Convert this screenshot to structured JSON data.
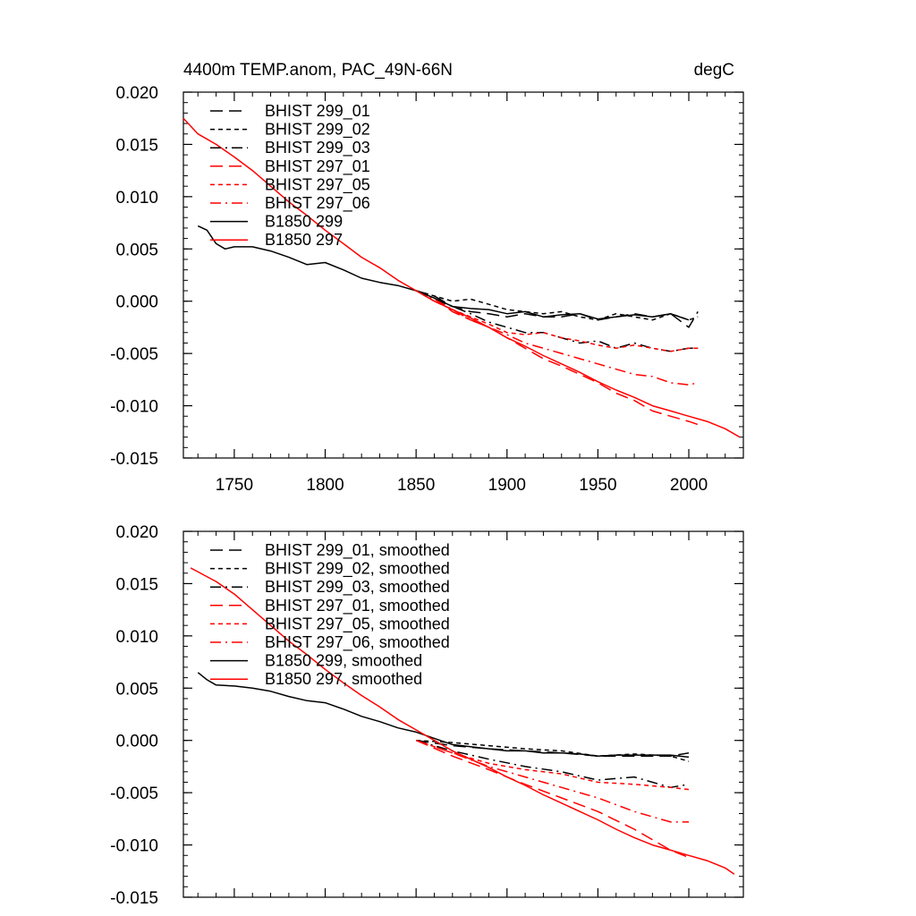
{
  "chart_data": [
    {
      "type": "line",
      "title": "4400m TEMP.anom, PAC_49N-66N",
      "units": "degC",
      "xlim": [
        1722,
        2030
      ],
      "ylim": [
        -0.015,
        0.02
      ],
      "xticks": [
        1750,
        1800,
        1850,
        1900,
        1950,
        2000
      ],
      "xtick_labels_shown": true,
      "yticks": [
        0.02,
        0.015,
        0.01,
        0.005,
        0.0,
        -0.005,
        -0.01,
        -0.015
      ],
      "ytick_labels": [
        "0.020",
        "0.015",
        "0.010",
        "0.005",
        "0.000",
        "-0.005",
        "-0.010",
        "-0.015"
      ],
      "grid": false,
      "legend_position": "top-left",
      "series": [
        {
          "name": "BHIST 299_01",
          "color": "#000000",
          "dash": "long-dash",
          "x": [
            1850,
            1860,
            1870,
            1880,
            1890,
            1900,
            1910,
            1920,
            1930,
            1940,
            1950,
            1960,
            1970,
            1980,
            1990,
            2000,
            2005
          ],
          "y": [
            0.001,
            0.0005,
            -0.0005,
            -0.001,
            -0.0012,
            -0.0015,
            -0.0012,
            -0.0015,
            -0.0015,
            -0.0012,
            -0.0018,
            -0.0015,
            -0.0012,
            -0.0015,
            -0.0012,
            -0.0025,
            -0.001
          ]
        },
        {
          "name": "BHIST 299_02",
          "color": "#000000",
          "dash": "short-dash",
          "x": [
            1850,
            1860,
            1870,
            1880,
            1890,
            1900,
            1910,
            1920,
            1930,
            1940,
            1950,
            1960,
            1970,
            1980,
            1990,
            2000,
            2005
          ],
          "y": [
            0.001,
            0.0005,
            0.0,
            0.0002,
            -0.0003,
            -0.0008,
            -0.001,
            -0.0012,
            -0.001,
            -0.0015,
            -0.0018,
            -0.0012,
            -0.0015,
            -0.0018,
            -0.0012,
            -0.0018,
            -0.0015
          ]
        },
        {
          "name": "BHIST 299_03",
          "color": "#000000",
          "dash": "dash-dot",
          "x": [
            1850,
            1860,
            1870,
            1880,
            1890,
            1900,
            1910,
            1920,
            1930,
            1940,
            1950,
            1960,
            1970,
            1980,
            1990,
            2000,
            2005
          ],
          "y": [
            0.001,
            0.0002,
            -0.0005,
            -0.0012,
            -0.002,
            -0.0025,
            -0.003,
            -0.003,
            -0.0035,
            -0.004,
            -0.0038,
            -0.0045,
            -0.004,
            -0.0045,
            -0.0048,
            -0.0045,
            -0.0045
          ]
        },
        {
          "name": "BHIST 297_01",
          "color": "#ff0000",
          "dash": "long-dash",
          "x": [
            1850,
            1860,
            1870,
            1880,
            1890,
            1900,
            1910,
            1920,
            1930,
            1940,
            1950,
            1960,
            1970,
            1980,
            1990,
            2000,
            2005
          ],
          "y": [
            0.001,
            0.0003,
            -0.001,
            -0.0018,
            -0.0025,
            -0.0035,
            -0.0045,
            -0.0055,
            -0.0062,
            -0.007,
            -0.0078,
            -0.0088,
            -0.0095,
            -0.0105,
            -0.011,
            -0.0115,
            -0.0118
          ]
        },
        {
          "name": "BHIST 297_05",
          "color": "#ff0000",
          "dash": "short-dash",
          "x": [
            1850,
            1860,
            1870,
            1880,
            1890,
            1900,
            1910,
            1920,
            1930,
            1940,
            1950,
            1960,
            1970,
            1980,
            1990,
            2000,
            2005
          ],
          "y": [
            0.001,
            0.0,
            -0.0008,
            -0.0015,
            -0.0022,
            -0.003,
            -0.0032,
            -0.003,
            -0.0035,
            -0.0038,
            -0.0042,
            -0.0045,
            -0.0042,
            -0.0045,
            -0.0048,
            -0.0045,
            -0.0045
          ]
        },
        {
          "name": "BHIST 297_06",
          "color": "#ff0000",
          "dash": "dash-dot",
          "x": [
            1850,
            1860,
            1870,
            1880,
            1890,
            1900,
            1910,
            1920,
            1930,
            1940,
            1950,
            1960,
            1970,
            1980,
            1990,
            2000,
            2005
          ],
          "y": [
            0.001,
            0.0002,
            -0.0008,
            -0.0018,
            -0.0025,
            -0.0032,
            -0.004,
            -0.0045,
            -0.005,
            -0.0055,
            -0.006,
            -0.0065,
            -0.007,
            -0.0072,
            -0.0078,
            -0.008,
            -0.0078
          ]
        },
        {
          "name": "B1850 299",
          "color": "#000000",
          "dash": "solid",
          "x": [
            1730,
            1735,
            1740,
            1745,
            1750,
            1760,
            1770,
            1780,
            1790,
            1800,
            1810,
            1820,
            1830,
            1840,
            1850,
            1860,
            1870,
            1880,
            1890,
            1900,
            1910,
            1920,
            1930,
            1940,
            1950,
            1960,
            1970,
            1980,
            1990,
            2000
          ],
          "y": [
            0.0072,
            0.0068,
            0.0055,
            0.005,
            0.0052,
            0.0052,
            0.0048,
            0.0042,
            0.0035,
            0.0037,
            0.003,
            0.0022,
            0.0018,
            0.0015,
            0.001,
            0.0003,
            -0.0005,
            -0.0007,
            -0.0008,
            -0.0012,
            -0.001,
            -0.0015,
            -0.0013,
            -0.0012,
            -0.0017,
            -0.0015,
            -0.0013,
            -0.0015,
            -0.0012,
            -0.0018
          ]
        },
        {
          "name": "B1850 297",
          "color": "#ff0000",
          "dash": "solid",
          "x": [
            1722,
            1730,
            1740,
            1750,
            1760,
            1770,
            1780,
            1790,
            1800,
            1810,
            1820,
            1830,
            1840,
            1850,
            1860,
            1870,
            1880,
            1890,
            1900,
            1910,
            1920,
            1930,
            1940,
            1950,
            1960,
            1970,
            1980,
            1990,
            2000,
            2010,
            2020,
            2028
          ],
          "y": [
            0.0175,
            0.016,
            0.015,
            0.0138,
            0.0125,
            0.011,
            0.0095,
            0.0082,
            0.0068,
            0.0055,
            0.0042,
            0.0032,
            0.002,
            0.001,
            0.0,
            -0.0008,
            -0.0016,
            -0.0025,
            -0.0035,
            -0.0043,
            -0.0052,
            -0.006,
            -0.0068,
            -0.0077,
            -0.0085,
            -0.0092,
            -0.01,
            -0.0105,
            -0.011,
            -0.0115,
            -0.0122,
            -0.013
          ]
        }
      ]
    },
    {
      "type": "line",
      "xlim": [
        1722,
        2030
      ],
      "ylim": [
        -0.015,
        0.02
      ],
      "xticks": [
        1750,
        1800,
        1850,
        1900,
        1950,
        2000
      ],
      "xtick_labels_shown": false,
      "yticks": [
        0.02,
        0.015,
        0.01,
        0.005,
        0.0,
        -0.005,
        -0.01,
        -0.015
      ],
      "ytick_labels": [
        "0.020",
        "0.015",
        "0.010",
        "0.005",
        "0.000",
        "-0.005",
        "-0.010",
        "-0.015"
      ],
      "grid": false,
      "legend_position": "top-left",
      "series": [
        {
          "name": "BHIST 299_01, smoothed",
          "color": "#000000",
          "dash": "long-dash",
          "x": [
            1850,
            1870,
            1890,
            1910,
            1930,
            1950,
            1970,
            1990,
            2000
          ],
          "y": [
            0.0,
            -0.0005,
            -0.0008,
            -0.001,
            -0.0012,
            -0.0015,
            -0.0015,
            -0.0015,
            -0.0012
          ]
        },
        {
          "name": "BHIST 299_02, smoothed",
          "color": "#000000",
          "dash": "short-dash",
          "x": [
            1850,
            1870,
            1890,
            1910,
            1930,
            1950,
            1970,
            1990,
            2000
          ],
          "y": [
            0.0,
            -0.0002,
            -0.0005,
            -0.0008,
            -0.001,
            -0.0015,
            -0.0013,
            -0.0015,
            -0.002
          ]
        },
        {
          "name": "BHIST 299_03, smoothed",
          "color": "#000000",
          "dash": "dash-dot",
          "x": [
            1850,
            1870,
            1890,
            1910,
            1930,
            1950,
            1970,
            1990,
            2000
          ],
          "y": [
            0.0,
            -0.001,
            -0.0018,
            -0.0025,
            -0.003,
            -0.0038,
            -0.0035,
            -0.0045,
            -0.0042
          ]
        },
        {
          "name": "BHIST 297_01, smoothed",
          "color": "#ff0000",
          "dash": "long-dash",
          "x": [
            1850,
            1870,
            1890,
            1910,
            1930,
            1950,
            1970,
            1990,
            2000
          ],
          "y": [
            0.0,
            -0.0015,
            -0.0028,
            -0.0042,
            -0.0055,
            -0.0068,
            -0.0085,
            -0.0105,
            -0.0112
          ]
        },
        {
          "name": "BHIST 297_05, smoothed",
          "color": "#ff0000",
          "dash": "short-dash",
          "x": [
            1850,
            1870,
            1890,
            1910,
            1930,
            1950,
            1970,
            1990,
            2000
          ],
          "y": [
            0.0,
            -0.0012,
            -0.0022,
            -0.0028,
            -0.0032,
            -0.004,
            -0.0042,
            -0.0045,
            -0.0047
          ]
        },
        {
          "name": "BHIST 297_06, smoothed",
          "color": "#ff0000",
          "dash": "dash-dot",
          "x": [
            1850,
            1870,
            1890,
            1910,
            1930,
            1950,
            1970,
            1990,
            2000
          ],
          "y": [
            0.0,
            -0.0012,
            -0.0025,
            -0.0035,
            -0.0045,
            -0.0055,
            -0.0068,
            -0.0078,
            -0.0078
          ]
        },
        {
          "name": "B1850 299, smoothed",
          "color": "#000000",
          "dash": "solid",
          "x": [
            1730,
            1735,
            1740,
            1750,
            1760,
            1770,
            1780,
            1790,
            1800,
            1810,
            1820,
            1830,
            1840,
            1850,
            1860,
            1870,
            1880,
            1890,
            1900,
            1910,
            1920,
            1930,
            1940,
            1950,
            1960,
            1970,
            1980,
            1990,
            2000
          ],
          "y": [
            0.0065,
            0.0058,
            0.0053,
            0.0052,
            0.005,
            0.0047,
            0.0042,
            0.0038,
            0.0036,
            0.003,
            0.0023,
            0.0018,
            0.0012,
            0.0008,
            0.0002,
            -0.0004,
            -0.0006,
            -0.0008,
            -0.001,
            -0.001,
            -0.0012,
            -0.0012,
            -0.0013,
            -0.0015,
            -0.0014,
            -0.0014,
            -0.0014,
            -0.0014,
            -0.0016
          ]
        },
        {
          "name": "B1850 297, smoothed",
          "color": "#ff0000",
          "dash": "solid",
          "x": [
            1726,
            1740,
            1750,
            1760,
            1770,
            1780,
            1790,
            1800,
            1810,
            1820,
            1830,
            1840,
            1850,
            1860,
            1870,
            1880,
            1890,
            1900,
            1910,
            1920,
            1930,
            1940,
            1950,
            1960,
            1970,
            1980,
            1990,
            2000,
            2010,
            2020,
            2025
          ],
          "y": [
            0.0165,
            0.0152,
            0.014,
            0.0125,
            0.011,
            0.0095,
            0.0082,
            0.0068,
            0.0055,
            0.0043,
            0.0032,
            0.002,
            0.001,
            0.0,
            -0.001,
            -0.0018,
            -0.0026,
            -0.0035,
            -0.0043,
            -0.0052,
            -0.006,
            -0.0068,
            -0.0076,
            -0.0085,
            -0.0093,
            -0.01,
            -0.0105,
            -0.011,
            -0.0115,
            -0.0122,
            -0.0128
          ]
        }
      ]
    }
  ]
}
